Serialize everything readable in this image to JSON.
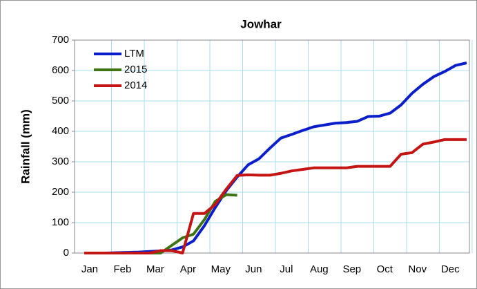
{
  "chart_data": {
    "type": "line",
    "title": "Jowhar",
    "y_label": "Rainfall (mm)",
    "categories": [
      "Jan",
      null,
      null,
      "Feb",
      null,
      null,
      "Mar",
      null,
      null,
      "Apr",
      null,
      null,
      "May",
      null,
      null,
      "Jun",
      null,
      null,
      "Jul",
      null,
      null,
      "Aug",
      null,
      null,
      "Sep",
      null,
      null,
      "Oct",
      null,
      null,
      "Nov",
      null,
      null,
      "Dec",
      null,
      null
    ],
    "series": [
      {
        "name": "LTM",
        "color": "#0a1ecc",
        "values": [
          0,
          0,
          0,
          1,
          2,
          3,
          5,
          7,
          10,
          20,
          40,
          90,
          150,
          205,
          250,
          290,
          310,
          345,
          378,
          390,
          403,
          415,
          421,
          427,
          429,
          433,
          449,
          450,
          460,
          487,
          525,
          555,
          580,
          597,
          617,
          625
        ]
      },
      {
        "name": "2015",
        "color": "#3f7415",
        "values": [
          0,
          0,
          0,
          0,
          0,
          0,
          0,
          0,
          25,
          50,
          62,
          110,
          170,
          192,
          190,
          null,
          null,
          null,
          null,
          null,
          null,
          null,
          null,
          null,
          null,
          null,
          null,
          null,
          null,
          null,
          null,
          null,
          null,
          null,
          null,
          null
        ]
      },
      {
        "name": "2014",
        "color": "#c41414",
        "values": [
          0,
          0,
          0,
          0,
          0,
          0,
          0,
          8,
          8,
          0,
          130,
          130,
          160,
          210,
          255,
          257,
          256,
          256,
          262,
          270,
          275,
          280,
          280,
          280,
          280,
          285,
          285,
          285,
          285,
          325,
          330,
          358,
          365,
          373,
          373,
          373
        ]
      }
    ],
    "ylim": [
      0,
      700
    ],
    "yticks": [
      0,
      100,
      200,
      300,
      400,
      500,
      600,
      700
    ],
    "grid": true,
    "legend": "upper left"
  }
}
